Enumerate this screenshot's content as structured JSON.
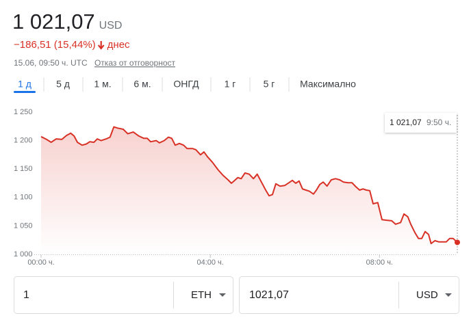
{
  "header": {
    "price": "1 021,07",
    "currency": "USD",
    "change": "−186,51 (15,44%)",
    "change_suffix": "днес",
    "timestamp": "15.06, 09:50 ч. UTC",
    "disclaimer": "Отказ от отговорност"
  },
  "tabs": [
    "1 д",
    "5 д",
    "1 м.",
    "6 м.",
    "ОНГД",
    "1 г",
    "5 г",
    "Максимално"
  ],
  "chart_data": {
    "type": "line",
    "color": "#d93025",
    "x": [
      0,
      0.13,
      0.24,
      0.36,
      0.49,
      0.6,
      0.7,
      0.78,
      0.86,
      0.97,
      1.07,
      1.15,
      1.25,
      1.33,
      1.42,
      1.54,
      1.63,
      1.72,
      1.81,
      1.94,
      2.05,
      2.18,
      2.31,
      2.43,
      2.51,
      2.59,
      2.72,
      2.8,
      2.91,
      3.01,
      3.09,
      3.17,
      3.27,
      3.37,
      3.45,
      3.58,
      3.66,
      3.77,
      3.85,
      3.93,
      4.05,
      4.18,
      4.3,
      4.42,
      4.5,
      4.56,
      4.65,
      4.73,
      4.82,
      4.92,
      5.02,
      5.11,
      5.21,
      5.31,
      5.39,
      5.47,
      5.55,
      5.65,
      5.76,
      5.86,
      5.94,
      6.02,
      6.1,
      6.18,
      6.26,
      6.34,
      6.44,
      6.51,
      6.59,
      6.67,
      6.76,
      6.86,
      6.96,
      7.06,
      7.15,
      7.25,
      7.35,
      7.44,
      7.53,
      7.61,
      7.69,
      7.77,
      7.85,
      7.96,
      8.06,
      8.17,
      8.29,
      8.38,
      8.5,
      8.58,
      8.67,
      8.74,
      8.84,
      8.92,
      9.0,
      9.08,
      9.16,
      9.22,
      9.31,
      9.4,
      9.5,
      9.58,
      9.66,
      9.74,
      9.84
    ],
    "values": [
      1207,
      1202,
      1197,
      1203,
      1202,
      1209,
      1213,
      1208,
      1197,
      1192,
      1194,
      1198,
      1197,
      1203,
      1200,
      1203,
      1206,
      1224,
      1222,
      1220,
      1212,
      1215,
      1208,
      1204,
      1204,
      1198,
      1200,
      1196,
      1200,
      1206,
      1204,
      1192,
      1195,
      1192,
      1186,
      1186,
      1184,
      1175,
      1180,
      1172,
      1162,
      1149,
      1139,
      1131,
      1125,
      1129,
      1135,
      1133,
      1143,
      1141,
      1133,
      1141,
      1127,
      1113,
      1103,
      1105,
      1124,
      1120,
      1121,
      1126,
      1130,
      1125,
      1129,
      1115,
      1113,
      1111,
      1106,
      1113,
      1123,
      1127,
      1120,
      1131,
      1133,
      1131,
      1127,
      1126,
      1126,
      1119,
      1113,
      1115,
      1113,
      1112,
      1089,
      1091,
      1061,
      1060,
      1059,
      1053,
      1056,
      1071,
      1066,
      1053,
      1038,
      1028,
      1028,
      1040,
      1035,
      1019,
      1024,
      1022,
      1022,
      1022,
      1028,
      1028,
      1021.07
    ],
    "xlim": [
      0,
      9.84
    ],
    "xticks": [
      {
        "value": 0,
        "label": "00:00 ч."
      },
      {
        "value": 4,
        "label": "04:00 ч."
      },
      {
        "value": 8,
        "label": "08:00 ч."
      }
    ],
    "ylim": [
      1000,
      1250
    ],
    "yticks": [
      {
        "value": 1000,
        "label": "1 000"
      },
      {
        "value": 1050,
        "label": "1 050"
      },
      {
        "value": 1100,
        "label": "1 100"
      },
      {
        "value": 1150,
        "label": "1 150"
      },
      {
        "value": 1200,
        "label": "1 200"
      },
      {
        "value": 1250,
        "label": "1 250"
      }
    ],
    "grid": false
  },
  "tooltip": {
    "value": "1 021,07",
    "time": "9:50 ч."
  },
  "converter": {
    "from_amount": "1",
    "from_currency": "ETH",
    "to_amount": "1021,07",
    "to_currency": "USD"
  }
}
